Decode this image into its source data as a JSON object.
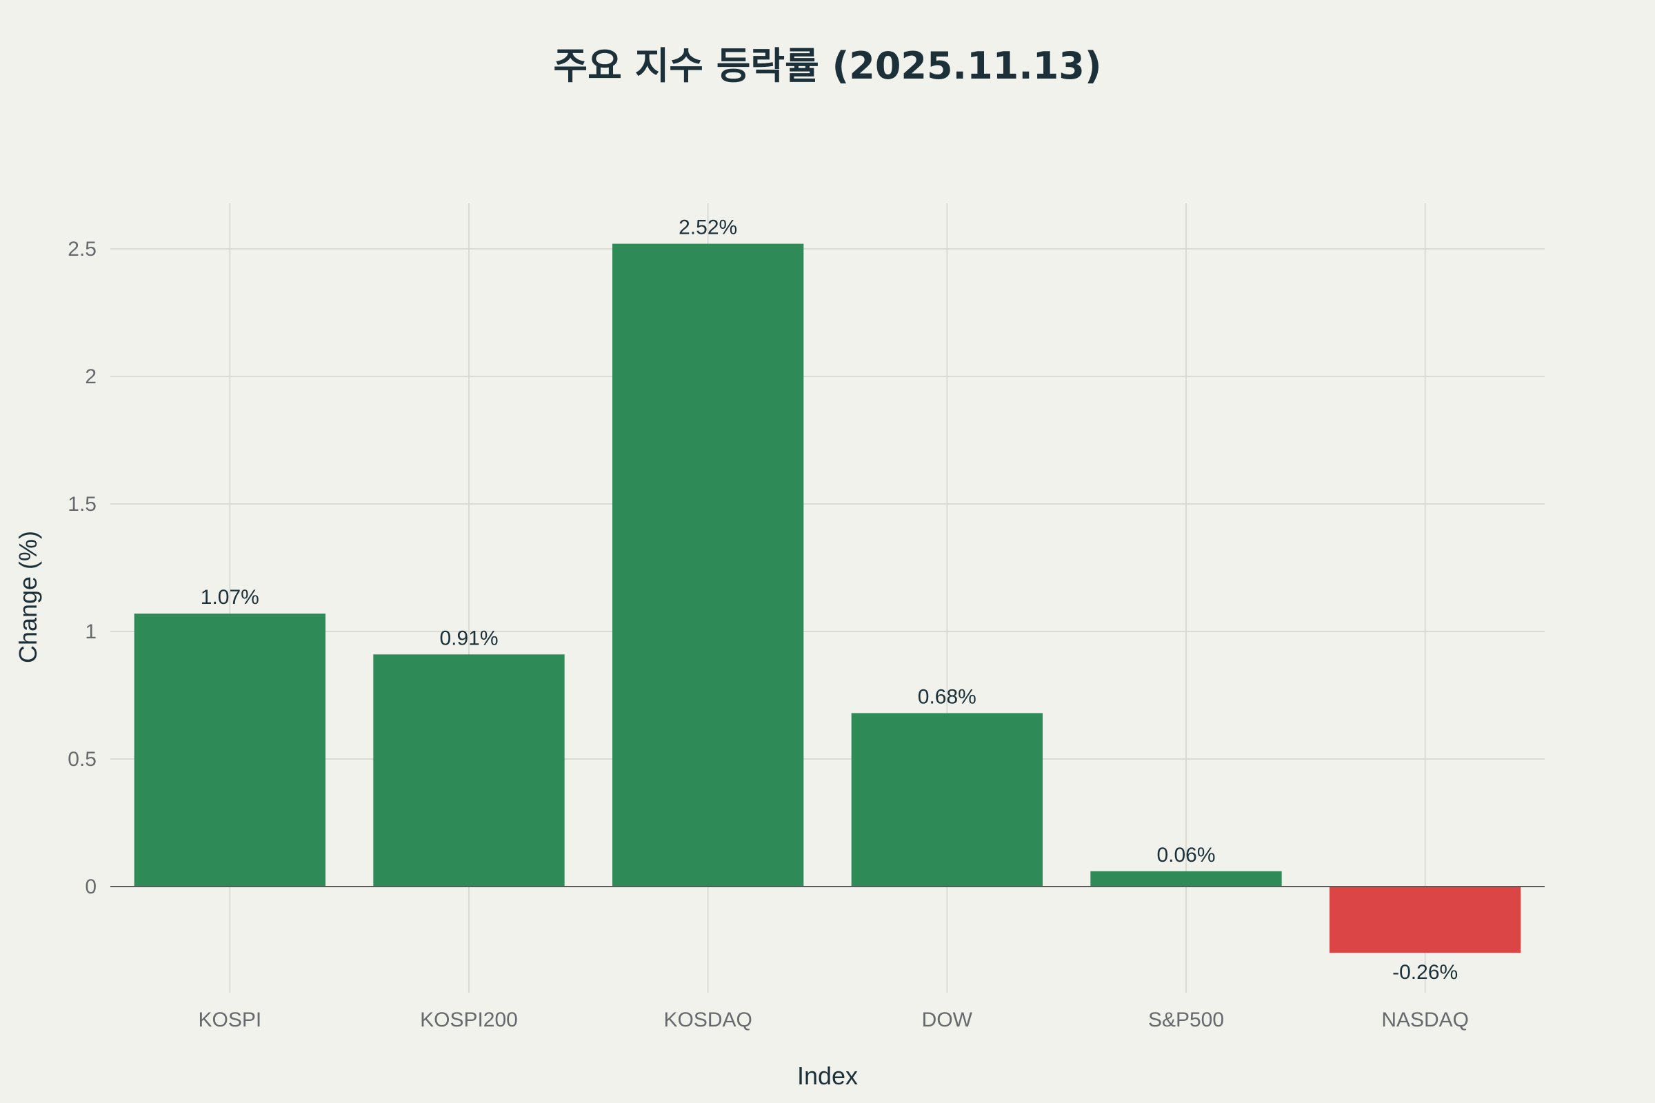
{
  "chart_data": {
    "type": "bar",
    "title": "주요 지수 등락률 (2025.11.13)",
    "xlabel": "Index",
    "ylabel": "Change (%)",
    "categories": [
      "KOSPI",
      "KOSPI200",
      "KOSDAQ",
      "DOW",
      "S&P500",
      "NASDAQ"
    ],
    "values": [
      1.07,
      0.91,
      2.52,
      0.68,
      0.06,
      -0.26
    ],
    "data_labels": [
      "1.07%",
      "0.91%",
      "2.52%",
      "0.68%",
      "0.06%",
      "-0.26%"
    ],
    "ylim": [
      -0.42,
      2.67
    ],
    "yticks": [
      0,
      0.5,
      1,
      1.5,
      2,
      2.5
    ],
    "ytick_labels": [
      "0",
      "0.5",
      "1",
      "1.5",
      "2",
      "2.5"
    ],
    "grid": true,
    "legend": "none",
    "colors": {
      "positive": "#2e8a57",
      "negative": "#db4545",
      "background": "#f2f2ed"
    }
  }
}
